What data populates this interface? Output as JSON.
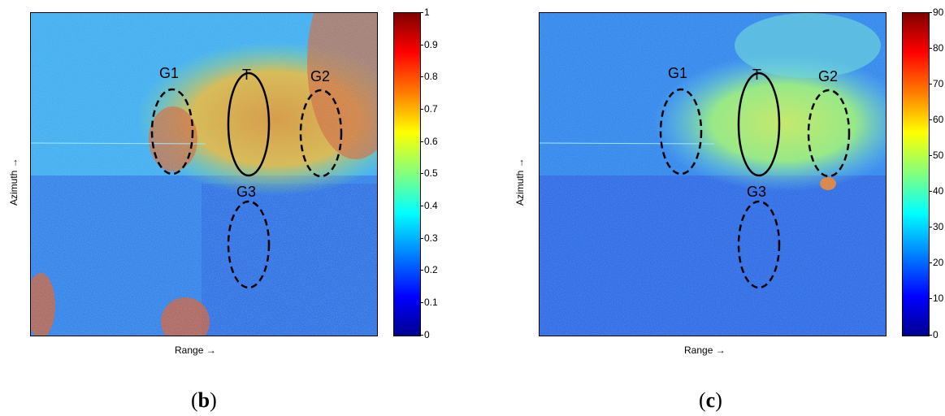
{
  "panels": [
    {
      "caption_open": "(",
      "caption_letter": "b",
      "caption_close": ")",
      "xlabel": "Range →",
      "ylabel": "Azimuth →",
      "colorbar_ticks": [
        "1",
        "0.9",
        "0.8",
        "0.7",
        "0.6",
        "0.5",
        "0.4",
        "0.3",
        "0.2",
        "0.1",
        "0"
      ],
      "regions": [
        "G1",
        "T",
        "G2",
        "G3"
      ]
    },
    {
      "caption_open": "(",
      "caption_letter": "c",
      "caption_close": ")",
      "xlabel": "Range →",
      "ylabel": "Azimuth →",
      "colorbar_ticks": [
        "90",
        "80",
        "70",
        "60",
        "50",
        "40",
        "30",
        "20",
        "10",
        "0"
      ],
      "regions": [
        "G1",
        "T",
        "G2",
        "G3"
      ]
    }
  ],
  "colors": {
    "colormap": [
      "#00008f",
      "#0000ff",
      "#00ffff",
      "#ffff00",
      "#ff0000",
      "#800000"
    ]
  }
}
